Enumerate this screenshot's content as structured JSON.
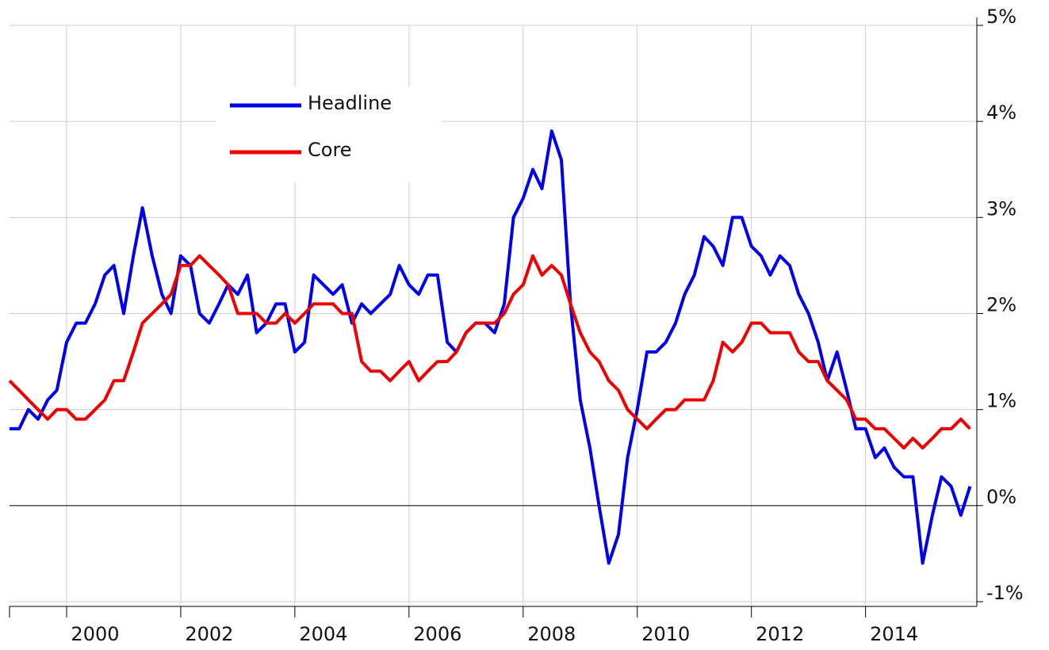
{
  "chart_data": {
    "type": "line",
    "x": [
      1999,
      1999.17,
      1999.33,
      1999.5,
      1999.67,
      1999.83,
      2000,
      2000.17,
      2000.33,
      2000.5,
      2000.67,
      2000.83,
      2001,
      2001.17,
      2001.33,
      2001.5,
      2001.67,
      2001.83,
      2002,
      2002.17,
      2002.33,
      2002.5,
      2002.67,
      2002.83,
      2003,
      2003.17,
      2003.33,
      2003.5,
      2003.67,
      2003.83,
      2004,
      2004.17,
      2004.33,
      2004.5,
      2004.67,
      2004.83,
      2005,
      2005.17,
      2005.33,
      2005.5,
      2005.67,
      2005.83,
      2006,
      2006.17,
      2006.33,
      2006.5,
      2006.67,
      2006.83,
      2007,
      2007.17,
      2007.33,
      2007.5,
      2007.67,
      2007.83,
      2008,
      2008.17,
      2008.33,
      2008.5,
      2008.67,
      2008.83,
      2009,
      2009.17,
      2009.33,
      2009.5,
      2009.67,
      2009.83,
      2010,
      2010.17,
      2010.33,
      2010.5,
      2010.67,
      2010.83,
      2011,
      2011.17,
      2011.33,
      2011.5,
      2011.67,
      2011.83,
      2012,
      2012.17,
      2012.33,
      2012.5,
      2012.67,
      2012.83,
      2013,
      2013.17,
      2013.33,
      2013.5,
      2013.67,
      2013.83,
      2014,
      2014.17,
      2014.33,
      2014.5,
      2014.67,
      2014.83,
      2015,
      2015.17,
      2015.33,
      2015.5,
      2015.67,
      2015.83
    ],
    "series": [
      {
        "name": "Headline",
        "color": "#0000ee",
        "values": [
          0.8,
          0.8,
          1.0,
          0.9,
          1.1,
          1.2,
          1.7,
          1.9,
          1.9,
          2.1,
          2.4,
          2.5,
          2.0,
          2.6,
          3.1,
          2.6,
          2.2,
          2.0,
          2.6,
          2.5,
          2.0,
          1.9,
          2.1,
          2.3,
          2.2,
          2.4,
          1.8,
          1.9,
          2.1,
          2.1,
          1.6,
          1.7,
          2.4,
          2.3,
          2.2,
          2.3,
          1.9,
          2.1,
          2.0,
          2.1,
          2.2,
          2.5,
          2.3,
          2.2,
          2.4,
          2.4,
          1.7,
          1.6,
          1.8,
          1.9,
          1.9,
          1.8,
          2.1,
          3.0,
          3.2,
          3.5,
          3.3,
          3.9,
          3.6,
          2.1,
          1.1,
          0.6,
          0.0,
          -0.6,
          -0.3,
          0.5,
          1.0,
          1.6,
          1.6,
          1.7,
          1.9,
          2.2,
          2.4,
          2.8,
          2.7,
          2.5,
          3.0,
          3.0,
          2.7,
          2.6,
          2.4,
          2.6,
          2.5,
          2.2,
          2.0,
          1.7,
          1.3,
          1.6,
          1.2,
          0.8,
          0.8,
          0.5,
          0.6,
          0.4,
          0.3,
          0.3,
          -0.6,
          -0.1,
          0.3,
          0.2,
          -0.1,
          0.2
        ]
      },
      {
        "name": "Core",
        "color": "#ee0000",
        "values": [
          1.3,
          1.2,
          1.1,
          1.0,
          0.9,
          1.0,
          1.0,
          0.9,
          0.9,
          1.0,
          1.1,
          1.3,
          1.3,
          1.6,
          1.9,
          2.0,
          2.1,
          2.2,
          2.5,
          2.5,
          2.6,
          2.5,
          2.4,
          2.3,
          2.0,
          2.0,
          2.0,
          1.9,
          1.9,
          2.0,
          1.9,
          2.0,
          2.1,
          2.1,
          2.1,
          2.0,
          2.0,
          1.5,
          1.4,
          1.4,
          1.3,
          1.4,
          1.5,
          1.3,
          1.4,
          1.5,
          1.5,
          1.6,
          1.8,
          1.9,
          1.9,
          1.9,
          2.0,
          2.2,
          2.3,
          2.6,
          2.4,
          2.5,
          2.4,
          2.1,
          1.8,
          1.6,
          1.5,
          1.3,
          1.2,
          1.0,
          0.9,
          0.8,
          0.9,
          1.0,
          1.0,
          1.1,
          1.1,
          1.1,
          1.3,
          1.7,
          1.6,
          1.7,
          1.9,
          1.9,
          1.8,
          1.8,
          1.8,
          1.6,
          1.5,
          1.5,
          1.3,
          1.2,
          1.1,
          0.9,
          0.9,
          0.8,
          0.8,
          0.7,
          0.6,
          0.7,
          0.6,
          0.7,
          0.8,
          0.8,
          0.9,
          0.8
        ]
      }
    ],
    "xlim": [
      1999,
      2015.95
    ],
    "xticks": [
      2000,
      2002,
      2004,
      2006,
      2008,
      2010,
      2012,
      2014
    ],
    "ylim": [
      -1,
      5
    ],
    "yticks": [
      {
        "value": -1,
        "label": "-1%"
      },
      {
        "value": 0,
        "label": "0%"
      },
      {
        "value": 1,
        "label": "1%"
      },
      {
        "value": 2,
        "label": "2%"
      },
      {
        "value": 3,
        "label": "3%"
      },
      {
        "value": 4,
        "label": "4%"
      },
      {
        "value": 5,
        "label": "5%"
      }
    ],
    "grid": true,
    "zero_line": true,
    "legend": "upper left"
  }
}
